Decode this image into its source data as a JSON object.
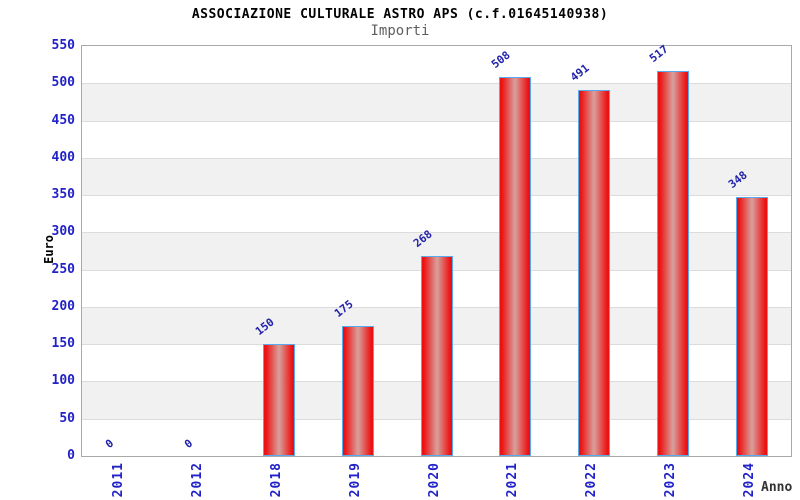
{
  "header": {
    "title": "ASSOCIAZIONE CULTURALE ASTRO APS (c.f.01645140938)",
    "subtitle": "Importi"
  },
  "chart_data": {
    "type": "bar",
    "title": "ASSOCIAZIONE CULTURALE ASTRO APS (c.f.01645140938)",
    "subtitle": "Importi",
    "categories": [
      "2011",
      "2012",
      "2018",
      "2019",
      "2020",
      "2021",
      "2022",
      "2023",
      "2024"
    ],
    "values": [
      0,
      0,
      150,
      175,
      268,
      508,
      491,
      517,
      348
    ],
    "xlabel": "Anno",
    "ylabel": "Euro",
    "ylim": [
      0,
      550
    ],
    "ytick_step": 50,
    "yticks": [
      0,
      50,
      100,
      150,
      200,
      250,
      300,
      350,
      400,
      450,
      500,
      550
    ],
    "grid": true,
    "legend_position": "none",
    "colors": {
      "bar_fill": "#ed1212",
      "bar_highlight": "#d8a09c",
      "bar_border": "#58aaee",
      "tick_label": "#2121c8",
      "value_label": "#2222aa",
      "band_fill": "#f1f1f1",
      "gridline": "#dcdcdc",
      "plot_border": "#a9a9a9",
      "subtitle_text": "#5f5f5f",
      "axis_title_x": "#333333"
    }
  }
}
